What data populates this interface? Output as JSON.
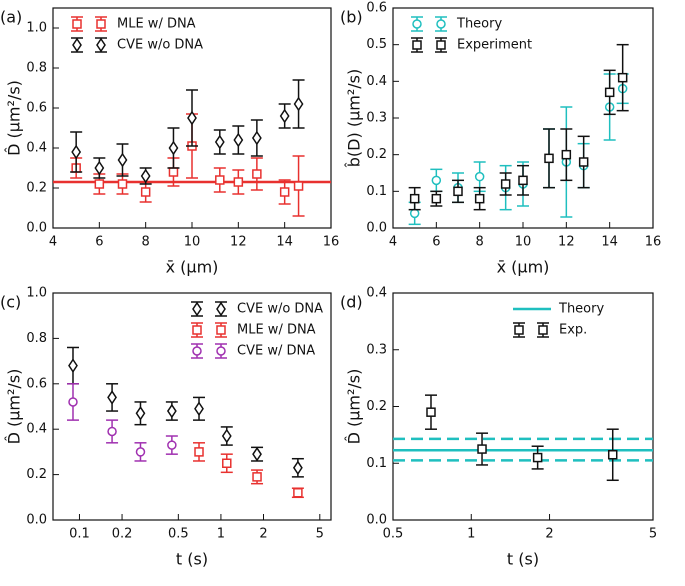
{
  "chart_data": [
    {
      "type": "errorbar",
      "label": "(a)",
      "xlabel": "x̄ (μm)",
      "ylabel": "D̂ (μm²/s)",
      "xlim": [
        4,
        16
      ],
      "xticks": [
        4,
        6,
        8,
        10,
        12,
        14,
        16
      ],
      "ylim": [
        0,
        1.1
      ],
      "yticks": [
        {
          "value": 0,
          "label": "0.0"
        },
        0.2,
        0.4,
        0.6,
        0.8,
        {
          "value": 1,
          "label": "1.0"
        }
      ],
      "legend": "upper left",
      "reference_lines": [
        {
          "value": 0.23,
          "color": "#e8312f"
        }
      ],
      "series": [
        {
          "name": "MLE w/ DNA",
          "color": "#e8312f",
          "marker": "square",
          "x": [
            5,
            6,
            7,
            8,
            9.2,
            10,
            11.2,
            12,
            12.8,
            14,
            14.6
          ],
          "values": [
            0.3,
            0.22,
            0.22,
            0.18,
            0.28,
            0.41,
            0.24,
            0.23,
            0.27,
            0.18,
            0.21
          ],
          "errors": [
            0.05,
            0.05,
            0.05,
            0.05,
            0.07,
            0.16,
            0.06,
            0.06,
            0.08,
            0.06,
            0.15
          ]
        },
        {
          "name": "CVE w/o DNA",
          "color": "#111111",
          "marker": "diamond",
          "x": [
            5,
            6,
            7,
            8,
            9.2,
            10,
            11.2,
            12,
            12.8,
            14,
            14.6
          ],
          "values": [
            0.38,
            0.3,
            0.34,
            0.26,
            0.4,
            0.55,
            0.43,
            0.44,
            0.45,
            0.56,
            0.62
          ],
          "errors": [
            0.1,
            0.05,
            0.08,
            0.04,
            0.1,
            0.14,
            0.06,
            0.07,
            0.09,
            0.06,
            0.12
          ]
        }
      ]
    },
    {
      "type": "errorbar",
      "label": "(b)",
      "xlabel": "x̄ (μm)",
      "ylabel": "b̂(D) (μm²/s)",
      "xlim": [
        4,
        16
      ],
      "xticks": [
        4,
        6,
        8,
        10,
        12,
        14,
        16
      ],
      "ylim": [
        0,
        0.6
      ],
      "yticks": [
        {
          "value": 0,
          "label": "0.0"
        },
        0.1,
        0.2,
        0.3,
        0.4,
        0.5,
        0.6
      ],
      "legend": "upper left",
      "series": [
        {
          "name": "Theory",
          "color": "#1fbfbf",
          "marker": "circle",
          "x": [
            5,
            6,
            7,
            8,
            9.2,
            10,
            11.2,
            12,
            12.8,
            14,
            14.6
          ],
          "values": [
            0.04,
            0.13,
            0.11,
            0.14,
            0.11,
            0.12,
            0.19,
            0.18,
            0.17,
            0.33,
            0.38
          ],
          "errors": [
            0.03,
            0.03,
            0.04,
            0.04,
            0.06,
            0.06,
            0.08,
            0.15,
            0.06,
            0.09,
            0.04
          ]
        },
        {
          "name": "Experiment",
          "color": "#111111",
          "marker": "square",
          "x": [
            5,
            6,
            7,
            8,
            9.2,
            10,
            11.2,
            12,
            12.8,
            14,
            14.6
          ],
          "values": [
            0.08,
            0.08,
            0.1,
            0.08,
            0.12,
            0.13,
            0.19,
            0.2,
            0.18,
            0.37,
            0.41
          ],
          "errors": [
            0.03,
            0.02,
            0.03,
            0.03,
            0.03,
            0.04,
            0.08,
            0.07,
            0.07,
            0.06,
            0.09
          ]
        }
      ]
    },
    {
      "type": "errorbar",
      "label": "(c)",
      "xlabel": "t (s)",
      "ylabel": "D̂ (μm²/s)",
      "xscale": "log",
      "xlim": [
        0.065,
        6
      ],
      "xticks": [
        0.1,
        0.2,
        0.5,
        1,
        2,
        5
      ],
      "ylim": [
        0,
        1
      ],
      "yticks": [
        {
          "value": 0,
          "label": "0.0"
        },
        0.2,
        0.4,
        0.6,
        0.8,
        {
          "value": 1,
          "label": "1.0"
        }
      ],
      "legend": "upper right",
      "series": [
        {
          "name": "CVE w/o DNA",
          "color": "#111111",
          "marker": "diamond",
          "x": [
            0.09,
            0.17,
            0.27,
            0.45,
            0.7,
            1.1,
            1.8,
            3.5
          ],
          "values": [
            0.68,
            0.54,
            0.47,
            0.48,
            0.49,
            0.37,
            0.29,
            0.23
          ],
          "errors": [
            0.08,
            0.06,
            0.05,
            0.04,
            0.05,
            0.04,
            0.03,
            0.04
          ]
        },
        {
          "name": "MLE w/ DNA",
          "color": "#e8312f",
          "marker": "square",
          "x": [
            0.7,
            1.1,
            1.8,
            3.5
          ],
          "values": [
            0.3,
            0.25,
            0.19,
            0.12
          ],
          "errors": [
            0.04,
            0.04,
            0.03,
            0.02
          ]
        },
        {
          "name": "CVE w/ DNA",
          "color": "#a030b0",
          "marker": "circle",
          "x": [
            0.09,
            0.17,
            0.27,
            0.45
          ],
          "values": [
            0.52,
            0.39,
            0.3,
            0.33
          ],
          "errors": [
            0.08,
            0.05,
            0.04,
            0.04
          ]
        }
      ]
    },
    {
      "type": "errorbar",
      "label": "(d)",
      "xlabel": "t (s)",
      "ylabel": "D̂ (μm²/s)",
      "xscale": "log",
      "xlim": [
        0.5,
        5
      ],
      "xticks": [
        0.5,
        1,
        2,
        5
      ],
      "ylim": [
        0,
        0.4
      ],
      "yticks": [
        {
          "value": 0,
          "label": "0.0"
        },
        0.1,
        0.2,
        0.3,
        0.4
      ],
      "legend": "upper right",
      "reference_lines": [
        {
          "name": "Theory",
          "value": 0.123,
          "lower": 0.105,
          "upper": 0.143,
          "color": "#1fbfbf"
        }
      ],
      "series": [
        {
          "name": "Exp.",
          "color": "#111111",
          "marker": "square",
          "x": [
            0.7,
            1.1,
            1.8,
            3.5
          ],
          "values": [
            0.19,
            0.125,
            0.11,
            0.115
          ],
          "errors": [
            0.03,
            0.028,
            0.02,
            0.045
          ]
        }
      ]
    }
  ]
}
